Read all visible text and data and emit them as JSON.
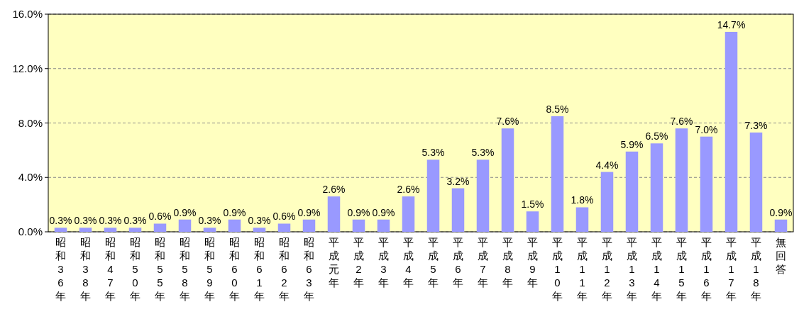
{
  "chart_data": {
    "type": "bar",
    "categories": [
      "昭和36年",
      "昭和38年",
      "昭和47年",
      "昭和50年",
      "昭和55年",
      "昭和58年",
      "昭和59年",
      "昭和60年",
      "昭和61年",
      "昭和62年",
      "昭和63年",
      "平成元年",
      "平成2年",
      "平成3年",
      "平成4年",
      "平成5年",
      "平成6年",
      "平成7年",
      "平成8年",
      "平成9年",
      "平成10年",
      "平成11年",
      "平成12年",
      "平成13年",
      "平成14年",
      "平成15年",
      "平成16年",
      "平成17年",
      "平成18年",
      "無回答"
    ],
    "values": [
      0.3,
      0.3,
      0.3,
      0.3,
      0.6,
      0.9,
      0.3,
      0.9,
      0.3,
      0.6,
      0.9,
      2.6,
      0.9,
      0.9,
      2.6,
      5.3,
      3.2,
      5.3,
      7.6,
      1.5,
      8.5,
      1.8,
      4.4,
      5.9,
      6.5,
      7.6,
      7.0,
      14.7,
      7.3,
      0.9
    ],
    "value_labels": [
      "0.3%",
      "0.3%",
      "0.3%",
      "0.3%",
      "0.6%",
      "0.9%",
      "0.3%",
      "0.9%",
      "0.3%",
      "0.6%",
      "0.9%",
      "2.6%",
      "0.9%",
      "0.9%",
      "2.6%",
      "5.3%",
      "3.2%",
      "5.3%",
      "7.6%",
      "1.5%",
      "8.5%",
      "1.8%",
      "4.4%",
      "5.9%",
      "6.5%",
      "7.6%",
      "7.0%",
      "14.7%",
      "7.3%",
      "0.9%"
    ],
    "color": "#9999ff",
    "ylim": [
      0,
      16
    ],
    "yticks": [
      {
        "value": 0,
        "label": "0.0%"
      },
      {
        "value": 4,
        "label": "4.0%"
      },
      {
        "value": 8,
        "label": "8.0%"
      },
      {
        "value": 12,
        "label": "12.0%"
      },
      {
        "value": 16,
        "label": "16.0%"
      }
    ],
    "grid": "y"
  }
}
